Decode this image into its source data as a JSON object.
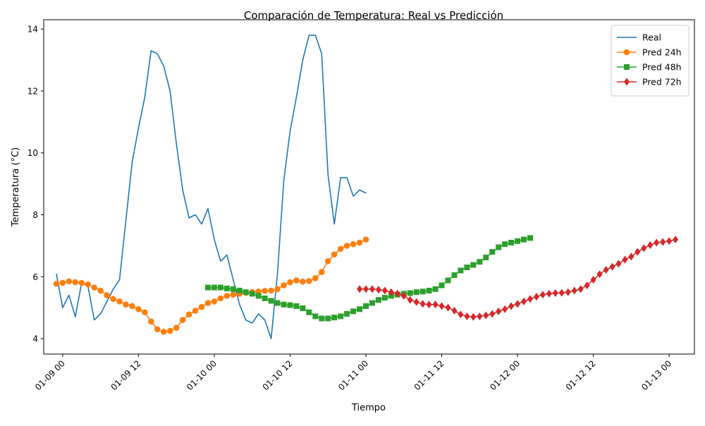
{
  "chart_data": {
    "type": "line",
    "title": "Comparación de Temperatura: Real vs Predicción",
    "xlabel": "Tiempo",
    "ylabel": "Temperatura (°C)",
    "xlim": [
      "2024-01-08 21:00",
      "2024-01-13 04:00"
    ],
    "ylim": [
      3.5,
      14.3
    ],
    "yticks": [
      4,
      6,
      8,
      10,
      12,
      14
    ],
    "xticks": [
      {
        "t": "2024-01-09 00:00",
        "label": "01-09 00"
      },
      {
        "t": "2024-01-09 12:00",
        "label": "01-09 12"
      },
      {
        "t": "2024-01-10 00:00",
        "label": "01-10 00"
      },
      {
        "t": "2024-01-10 12:00",
        "label": "01-10 12"
      },
      {
        "t": "2024-01-11 00:00",
        "label": "01-11 00"
      },
      {
        "t": "2024-01-11 12:00",
        "label": "01-11 12"
      },
      {
        "t": "2024-01-12 00:00",
        "label": "01-12 00"
      },
      {
        "t": "2024-01-12 12:00",
        "label": "01-12 12"
      },
      {
        "t": "2024-01-13 00:00",
        "label": "01-13 00"
      }
    ],
    "grid": false,
    "legend_position": "top-right",
    "series": [
      {
        "name": "Real",
        "color": "#1f77b4",
        "marker": "none",
        "start": "2024-01-08 23:00",
        "step_hours": 1,
        "values": [
          6.1,
          5.0,
          5.4,
          4.7,
          5.8,
          5.7,
          4.6,
          4.8,
          5.2,
          5.6,
          5.9,
          7.8,
          9.7,
          10.8,
          11.8,
          13.3,
          13.2,
          12.8,
          12.0,
          10.3,
          8.8,
          7.9,
          8.0,
          7.7,
          8.2,
          7.2,
          6.5,
          6.7,
          5.9,
          5.1,
          4.6,
          4.5,
          4.8,
          4.6,
          4.0,
          6.1,
          9.1,
          10.7,
          11.8,
          13.0,
          13.8,
          13.8,
          13.2,
          9.3,
          7.7,
          9.2,
          9.2,
          8.6,
          8.8,
          8.7
        ]
      },
      {
        "name": "Pred 24h",
        "color": "#ff7f0e",
        "marker": "circle",
        "start": "2024-01-08 23:00",
        "step_hours": 1,
        "values": [
          5.77,
          5.8,
          5.85,
          5.82,
          5.8,
          5.75,
          5.65,
          5.55,
          5.4,
          5.28,
          5.2,
          5.1,
          5.05,
          4.95,
          4.85,
          4.55,
          4.3,
          4.22,
          4.25,
          4.35,
          4.6,
          4.78,
          4.9,
          5.02,
          5.15,
          5.2,
          5.3,
          5.38,
          5.42,
          5.45,
          5.48,
          5.5,
          5.52,
          5.54,
          5.55,
          5.6,
          5.72,
          5.82,
          5.88,
          5.84,
          5.86,
          5.95,
          6.15,
          6.5,
          6.72,
          6.9,
          7.0,
          7.05,
          7.1,
          7.2
        ]
      },
      {
        "name": "Pred 48h",
        "color": "#2ca02c",
        "marker": "square",
        "start": "2024-01-09 23:00",
        "step_hours": 1,
        "values": [
          5.65,
          5.65,
          5.65,
          5.62,
          5.6,
          5.55,
          5.5,
          5.45,
          5.38,
          5.3,
          5.22,
          5.15,
          5.1,
          5.08,
          5.05,
          4.98,
          4.85,
          4.72,
          4.65,
          4.65,
          4.68,
          4.72,
          4.8,
          4.88,
          4.95,
          5.05,
          5.15,
          5.25,
          5.32,
          5.38,
          5.42,
          5.45,
          5.47,
          5.5,
          5.52,
          5.55,
          5.6,
          5.72,
          5.88,
          6.05,
          6.2,
          6.3,
          6.38,
          6.48,
          6.62,
          6.8,
          6.95,
          7.05,
          7.1,
          7.15,
          7.2,
          7.25
        ]
      },
      {
        "name": "Pred 72h",
        "color": "#d62728",
        "marker": "diamond",
        "start": "2024-01-10 23:00",
        "step_hours": 1,
        "values": [
          5.6,
          5.6,
          5.6,
          5.58,
          5.55,
          5.5,
          5.45,
          5.38,
          5.25,
          5.18,
          5.12,
          5.1,
          5.1,
          5.05,
          5.0,
          4.9,
          4.78,
          4.72,
          4.7,
          4.72,
          4.75,
          4.8,
          4.88,
          4.95,
          5.05,
          5.12,
          5.2,
          5.28,
          5.35,
          5.42,
          5.45,
          5.47,
          5.48,
          5.5,
          5.55,
          5.6,
          5.72,
          5.9,
          6.08,
          6.22,
          6.32,
          6.42,
          6.55,
          6.65,
          6.8,
          6.92,
          7.02,
          7.1,
          7.12,
          7.15,
          7.2
        ]
      }
    ]
  }
}
